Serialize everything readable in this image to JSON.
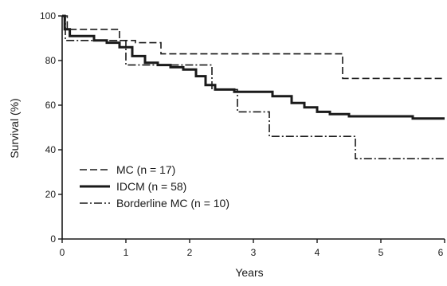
{
  "chart_data": {
    "type": "line",
    "subtype": "kaplan-meier-step",
    "title": "",
    "xlabel": "Years",
    "ylabel": "Survival (%)",
    "xlim": [
      0,
      6
    ],
    "ylim": [
      0,
      100
    ],
    "x_ticks": [
      0,
      1,
      2,
      3,
      4,
      5,
      6
    ],
    "y_ticks": [
      0,
      20,
      40,
      60,
      80,
      100
    ],
    "grid": false,
    "legend_position": "lower-left",
    "series": [
      {
        "name": "MC (n = 17)",
        "line_style": "dashed",
        "stroke_width": 1.6,
        "points": [
          [
            0,
            100
          ],
          [
            0.08,
            94
          ],
          [
            0.9,
            89
          ],
          [
            1.15,
            89
          ],
          [
            1.15,
            88
          ],
          [
            1.55,
            88
          ],
          [
            1.55,
            83
          ],
          [
            4.3,
            83
          ],
          [
            4.4,
            72
          ],
          [
            6,
            72
          ]
        ]
      },
      {
        "name": "IDCM (n = 58)",
        "line_style": "solid",
        "stroke_width": 3.0,
        "points": [
          [
            0,
            100
          ],
          [
            0.04,
            94
          ],
          [
            0.12,
            91
          ],
          [
            0.5,
            89
          ],
          [
            0.7,
            88
          ],
          [
            0.9,
            86
          ],
          [
            1.1,
            82
          ],
          [
            1.3,
            79
          ],
          [
            1.5,
            78
          ],
          [
            1.7,
            77
          ],
          [
            1.9,
            76
          ],
          [
            2.1,
            73
          ],
          [
            2.25,
            69
          ],
          [
            2.4,
            67
          ],
          [
            2.7,
            66
          ],
          [
            3.0,
            66
          ],
          [
            3.3,
            64
          ],
          [
            3.6,
            61
          ],
          [
            3.8,
            59
          ],
          [
            4.0,
            57
          ],
          [
            4.2,
            56
          ],
          [
            4.5,
            55
          ],
          [
            5.0,
            55
          ],
          [
            5.5,
            54
          ],
          [
            6,
            54
          ]
        ]
      },
      {
        "name": "Borderline MC (n = 10)",
        "line_style": "dash-dot",
        "stroke_width": 1.6,
        "points": [
          [
            0,
            100
          ],
          [
            0.05,
            89
          ],
          [
            0.9,
            89
          ],
          [
            1.0,
            78
          ],
          [
            2.35,
            78
          ],
          [
            2.35,
            67
          ],
          [
            2.7,
            67
          ],
          [
            2.75,
            57
          ],
          [
            3.2,
            57
          ],
          [
            3.25,
            46
          ],
          [
            4.55,
            46
          ],
          [
            4.6,
            36
          ],
          [
            6,
            36
          ]
        ]
      }
    ]
  }
}
